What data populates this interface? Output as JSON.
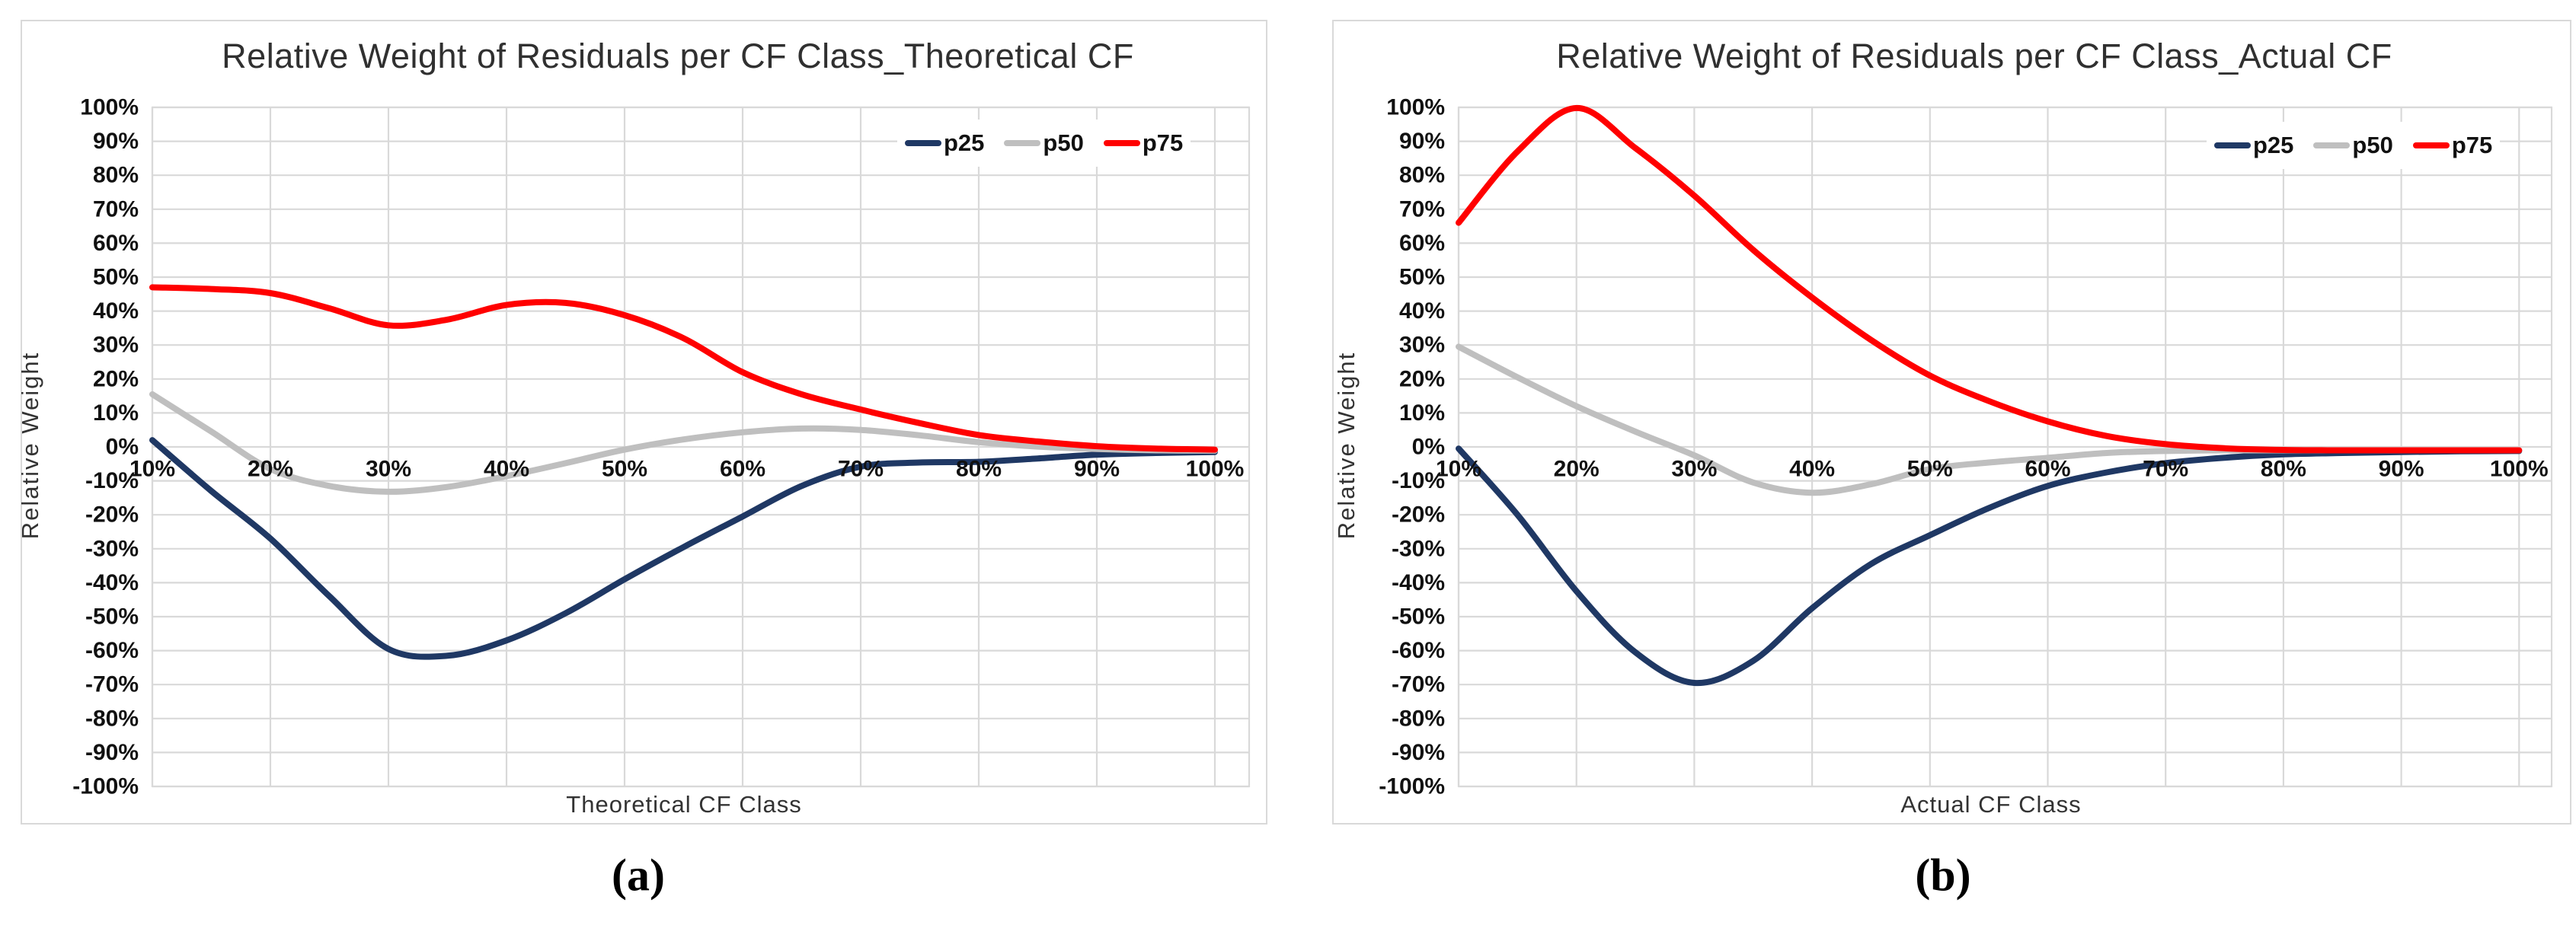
{
  "figure": {
    "background": "#ffffff",
    "captions": {
      "a": "(a)",
      "b": "(b)"
    }
  },
  "colors": {
    "gridline": "#d9d9d9",
    "frame": "#d9d9d9",
    "p25": "#1f3864",
    "p50": "#bfbfbf",
    "p75": "#ff0000",
    "title_text": "#303030",
    "tick_text": "#111111"
  },
  "chart_data": [
    {
      "type": "line",
      "title": "Relative Weight of Residuals per CF Class_Theoretical CF",
      "xlabel": "Theoretical CF Class",
      "ylabel": "Relative Weight",
      "caption": "(a)",
      "legend_position": "top-right",
      "grid": true,
      "ylim": [
        -100,
        100
      ],
      "y_tick_labels": [
        "100%",
        "90%",
        "80%",
        "70%",
        "60%",
        "50%",
        "40%",
        "30%",
        "20%",
        "10%",
        "0%",
        "-10%",
        "-20%",
        "-30%",
        "-40%",
        "-50%",
        "-60%",
        "-70%",
        "-80%",
        "-90%",
        "-100%"
      ],
      "x_tick_labels": [
        "10%",
        "20%",
        "30%",
        "40%",
        "50%",
        "60%",
        "70%",
        "80%",
        "90%",
        "100%"
      ],
      "x": [
        10,
        15,
        20,
        25,
        30,
        35,
        40,
        45,
        50,
        55,
        60,
        65,
        70,
        75,
        80,
        85,
        90,
        95,
        100
      ],
      "series": [
        {
          "name": "p25",
          "color": "#1f3864",
          "values": [
            2,
            -13,
            -27,
            -44,
            -59.5,
            -61.5,
            -57,
            -49,
            -39,
            -29.5,
            -20.5,
            -11.5,
            -5.8,
            -4.6,
            -4.4,
            -3.4,
            -2.3,
            -1.8,
            -1.5
          ]
        },
        {
          "name": "p50",
          "color": "#bfbfbf",
          "values": [
            15.5,
            4.5,
            -6.5,
            -11.5,
            -13.2,
            -11.8,
            -8.6,
            -4.8,
            -0.8,
            2.2,
            4.3,
            5.4,
            5.0,
            3.4,
            1.4,
            0.1,
            -0.6,
            -1.0,
            -1.1
          ]
        },
        {
          "name": "p75",
          "color": "#ff0000",
          "values": [
            47,
            46.5,
            45.3,
            40.8,
            35.8,
            37.5,
            41.8,
            42.4,
            38.8,
            32,
            22,
            15.5,
            11,
            7,
            3.5,
            1.6,
            0.2,
            -0.5,
            -0.8
          ]
        }
      ]
    },
    {
      "type": "line",
      "title": "Relative Weight of Residuals per CF Class_Actual CF",
      "xlabel": "Actual CF Class",
      "ylabel": "Relative Weight",
      "caption": "(b)",
      "legend_position": "top-right",
      "grid": true,
      "ylim": [
        -100,
        100
      ],
      "y_tick_labels": [
        "100%",
        "90%",
        "80%",
        "70%",
        "60%",
        "50%",
        "40%",
        "30%",
        "20%",
        "10%",
        "0%",
        "-10%",
        "-20%",
        "-30%",
        "-40%",
        "-50%",
        "-60%",
        "-70%",
        "-80%",
        "-90%",
        "-100%"
      ],
      "x_tick_labels": [
        "10%",
        "20%",
        "30%",
        "40%",
        "50%",
        "60%",
        "70%",
        "80%",
        "90%",
        "100%"
      ],
      "x": [
        10,
        15,
        20,
        25,
        30,
        35,
        40,
        45,
        50,
        55,
        60,
        65,
        70,
        75,
        80,
        85,
        90,
        95,
        100
      ],
      "series": [
        {
          "name": "p25",
          "color": "#1f3864",
          "values": [
            -0.5,
            -20,
            -42.5,
            -60.5,
            -69.5,
            -63,
            -47.5,
            -34.5,
            -26,
            -18,
            -11.5,
            -7.5,
            -4.8,
            -3.2,
            -2.2,
            -1.8,
            -1.5,
            -1.3,
            -1.2
          ]
        },
        {
          "name": "p50",
          "color": "#bfbfbf",
          "values": [
            29.5,
            20.5,
            12,
            4.5,
            -2.5,
            -10.5,
            -13.5,
            -11,
            -6.5,
            -4.6,
            -3.2,
            -1.8,
            -1.2,
            -1,
            -1,
            -1,
            -1,
            -1,
            -1
          ]
        },
        {
          "name": "p75",
          "color": "#ff0000",
          "values": [
            66,
            87,
            99.8,
            88,
            74,
            58,
            44,
            31.5,
            21,
            13.5,
            7.5,
            3.2,
            0.8,
            -0.4,
            -0.9,
            -1,
            -1,
            -1,
            -1
          ]
        }
      ]
    }
  ]
}
